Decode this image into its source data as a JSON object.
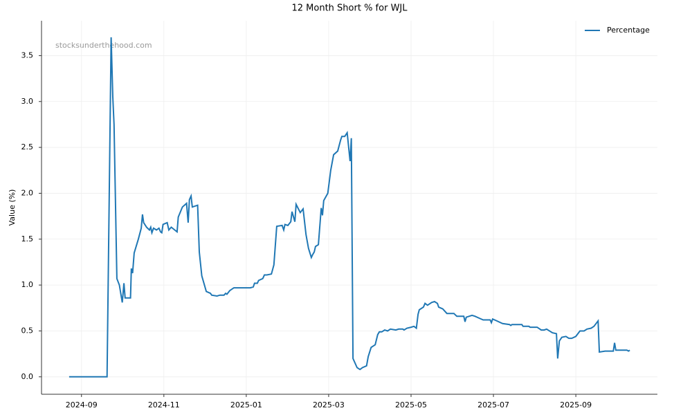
{
  "chart_data": {
    "type": "line",
    "title": "12 Month Short % for WJL",
    "ylabel": "Value (%)",
    "watermark": "stocksunderthehood.com",
    "x": [
      -0.3,
      0.62,
      0.72,
      0.76,
      0.79,
      0.86,
      0.92,
      0.99,
      1.03,
      1.06,
      1.19,
      1.21,
      1.24,
      1.28,
      1.38,
      1.45,
      1.48,
      1.51,
      1.58,
      1.65,
      1.68,
      1.71,
      1.75,
      1.82,
      1.88,
      1.92,
      1.95,
      1.98,
      2.08,
      2.12,
      2.18,
      2.32,
      2.35,
      2.45,
      2.55,
      2.59,
      2.62,
      2.66,
      2.69,
      2.82,
      2.86,
      2.92,
      3.03,
      3.13,
      3.16,
      3.29,
      3.36,
      3.46,
      3.5,
      3.53,
      3.6,
      3.7,
      4.1,
      4.17,
      4.2,
      4.27,
      4.3,
      4.4,
      4.44,
      4.5,
      4.61,
      4.67,
      4.74,
      4.87,
      4.91,
      4.94,
      5.01,
      5.08,
      5.11,
      5.18,
      5.21,
      5.31,
      5.38,
      5.45,
      5.51,
      5.58,
      5.61,
      5.65,
      5.68,
      5.75,
      5.82,
      5.85,
      5.88,
      5.98,
      6.05,
      6.12,
      6.22,
      6.29,
      6.32,
      6.39,
      6.45,
      6.52,
      6.55,
      6.59,
      6.69,
      6.76,
      6.82,
      6.92,
      6.96,
      7.03,
      7.13,
      7.19,
      7.23,
      7.29,
      7.36,
      7.43,
      7.5,
      7.63,
      7.7,
      7.8,
      7.83,
      7.9,
      8.0,
      8.07,
      8.13,
      8.17,
      8.2,
      8.3,
      8.34,
      8.4,
      8.5,
      8.57,
      8.64,
      8.67,
      8.77,
      8.87,
      9.04,
      9.11,
      9.28,
      9.31,
      9.34,
      9.48,
      9.55,
      9.65,
      9.75,
      9.92,
      9.95,
      9.98,
      10.08,
      10.22,
      10.39,
      10.42,
      10.45,
      10.69,
      10.72,
      10.86,
      10.89,
      11.06,
      11.16,
      11.23,
      11.29,
      11.43,
      11.53,
      11.56,
      11.6,
      11.66,
      11.76,
      11.83,
      11.9,
      12.0,
      12.1,
      12.2,
      12.27,
      12.37,
      12.44,
      12.54,
      12.57,
      12.71,
      12.91,
      12.94,
      12.97,
      13.24,
      13.28,
      13.31
    ],
    "series": [
      {
        "name": "Percentage",
        "color": "#1f77b4",
        "values": [
          0,
          0,
          3.7,
          3.05,
          2.75,
          1.07,
          1.0,
          0.81,
          1.02,
          0.86,
          0.86,
          1.18,
          1.13,
          1.35,
          1.5,
          1.62,
          1.77,
          1.68,
          1.63,
          1.6,
          1.63,
          1.57,
          1.62,
          1.6,
          1.62,
          1.58,
          1.57,
          1.66,
          1.68,
          1.6,
          1.63,
          1.58,
          1.74,
          1.85,
          1.89,
          1.68,
          1.93,
          1.97,
          1.85,
          1.87,
          1.36,
          1.1,
          0.93,
          0.91,
          0.89,
          0.88,
          0.89,
          0.89,
          0.91,
          0.9,
          0.94,
          0.97,
          0.97,
          0.98,
          1.02,
          1.02,
          1.05,
          1.07,
          1.11,
          1.11,
          1.12,
          1.22,
          1.64,
          1.65,
          1.6,
          1.66,
          1.65,
          1.69,
          1.8,
          1.69,
          1.88,
          1.79,
          1.83,
          1.55,
          1.4,
          1.3,
          1.33,
          1.36,
          1.42,
          1.44,
          1.84,
          1.76,
          1.92,
          2.0,
          2.25,
          2.42,
          2.46,
          2.58,
          2.62,
          2.62,
          2.66,
          2.35,
          2.6,
          0.2,
          0.1,
          0.08,
          0.1,
          0.12,
          0.22,
          0.32,
          0.35,
          0.46,
          0.49,
          0.49,
          0.51,
          0.5,
          0.52,
          0.51,
          0.52,
          0.52,
          0.51,
          0.53,
          0.54,
          0.55,
          0.53,
          0.68,
          0.73,
          0.76,
          0.8,
          0.78,
          0.81,
          0.82,
          0.8,
          0.76,
          0.74,
          0.69,
          0.69,
          0.66,
          0.66,
          0.6,
          0.65,
          0.67,
          0.66,
          0.64,
          0.62,
          0.62,
          0.59,
          0.63,
          0.61,
          0.58,
          0.57,
          0.56,
          0.57,
          0.57,
          0.55,
          0.55,
          0.54,
          0.54,
          0.51,
          0.51,
          0.52,
          0.48,
          0.47,
          0.2,
          0.39,
          0.43,
          0.44,
          0.42,
          0.42,
          0.44,
          0.5,
          0.5,
          0.52,
          0.53,
          0.55,
          0.61,
          0.27,
          0.28,
          0.28,
          0.37,
          0.29,
          0.29,
          0.28,
          0.29
        ]
      }
    ],
    "xlim": [
      -0.97,
      13.98
    ],
    "ylim": [
      -0.19,
      3.88
    ],
    "xticks": [
      {
        "value": 0,
        "label": "2024-09"
      },
      {
        "value": 2,
        "label": "2024-11"
      },
      {
        "value": 4,
        "label": "2025-01"
      },
      {
        "value": 6,
        "label": "2025-03"
      },
      {
        "value": 8,
        "label": "2025-05"
      },
      {
        "value": 10,
        "label": "2025-07"
      },
      {
        "value": 12,
        "label": "2025-09"
      }
    ],
    "yticks": [
      {
        "value": 0,
        "label": "0.0"
      },
      0.5,
      {
        "value": 1,
        "label": "1.0"
      },
      1.5,
      {
        "value": 2,
        "label": "2.0"
      },
      2.5,
      {
        "value": 3,
        "label": "3.0"
      },
      3.5
    ],
    "grid": true,
    "legend": "upper right"
  }
}
